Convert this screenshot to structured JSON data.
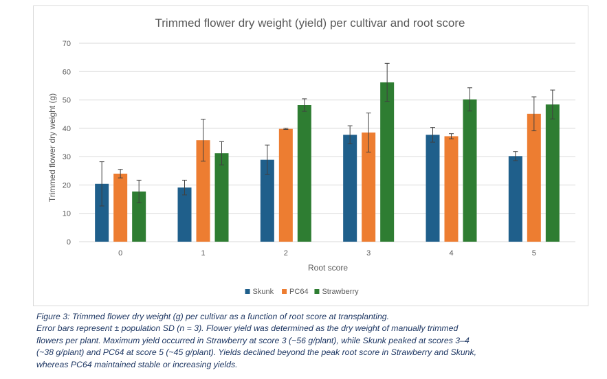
{
  "chart_data": {
    "type": "bar",
    "title": "Trimmed flower dry weight (yield) per cultivar and root score",
    "xlabel": "Root score",
    "ylabel": "Trimmed flower dry weight (g)",
    "ylim": [
      0,
      70
    ],
    "yticks": [
      0,
      10,
      20,
      30,
      40,
      50,
      60,
      70
    ],
    "grid": true,
    "legend_position": "bottom",
    "categories": [
      "0",
      "1",
      "2",
      "3",
      "4",
      "5"
    ],
    "series": [
      {
        "name": "Skunk",
        "color": "#1f5f8b",
        "values": [
          20.4,
          19.1,
          28.9,
          37.7,
          37.7,
          30.2
        ],
        "errors": [
          7.8,
          2.6,
          5.2,
          3.2,
          2.6,
          1.6
        ]
      },
      {
        "name": "PC64",
        "color": "#ed7d31",
        "values": [
          24.0,
          35.8,
          39.8,
          38.5,
          37.2,
          45.1
        ],
        "errors": [
          1.5,
          7.4,
          0.2,
          6.9,
          0.9,
          6.0
        ]
      },
      {
        "name": "Strawberry",
        "color": "#2e7d32",
        "values": [
          17.7,
          31.2,
          48.2,
          56.2,
          50.2,
          48.4
        ],
        "errors": [
          4.0,
          4.1,
          2.2,
          6.7,
          4.1,
          5.1
        ]
      }
    ]
  },
  "caption": {
    "lines": [
      "Figure 3: Trimmed flower dry weight (g) per cultivar as a function of root score at transplanting.",
      "Error bars represent  ± population SD (n = 3). Flower yield was determined as the dry weight of manually trimmed",
      "flowers per plant. Maximum yield occurred in Strawberry at score 3 (~56 g/plant), while Skunk peaked at scores 3–4",
      "(~38 g/plant) and PC64 at score 5 (~45 g/plant). Yields declined beyond the peak root score in Strawberry and Skunk,",
      "whereas PC64 maintained stable or increasing yields."
    ]
  }
}
